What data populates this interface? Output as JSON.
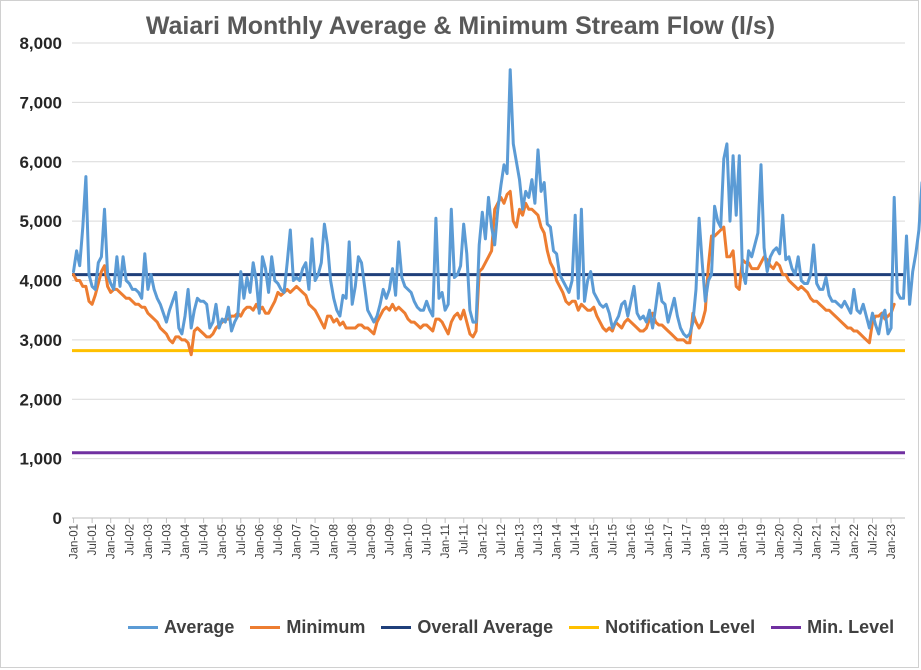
{
  "chart_data": {
    "type": "line",
    "title": "Waiari Monthly Average & Minimum Stream Flow (l/s)",
    "xlabel": "",
    "ylabel": "",
    "ylim": [
      0,
      8000
    ],
    "yticks": [
      "0",
      "1,000",
      "2,000",
      "3,000",
      "4,000",
      "5,000",
      "6,000",
      "7,000",
      "8,000"
    ],
    "grid": "horizontal",
    "legend_position": "bottom",
    "x_start": "2001-01",
    "x_end": "2023-05",
    "xtick_labels": [
      "Jan-01",
      "Jul-01",
      "Jan-02",
      "Jul-02",
      "Jan-03",
      "Jul-03",
      "Jan-04",
      "Jul-04",
      "Jan-05",
      "Jul-05",
      "Jan-06",
      "Jul-06",
      "Jan-07",
      "Jul-07",
      "Jan-08",
      "Jul-08",
      "Jan-09",
      "Jul-09",
      "Jan-10",
      "Jul-10",
      "Jan-11",
      "Jul-11",
      "Jan-12",
      "Jul-12",
      "Jan-13",
      "Jul-13",
      "Jan-14",
      "Jul-14",
      "Jan-15",
      "Jul-15",
      "Jan-16",
      "Jul-16",
      "Jan-17",
      "Jul-17",
      "Jan-18",
      "Jul-18",
      "Jan-19",
      "Jul-19",
      "Jan-20",
      "Jul-20",
      "Jan-21",
      "Jul-21",
      "Jan-22",
      "Jul-22",
      "Jan-23"
    ],
    "series": [
      {
        "name": "Average",
        "color": "#5B9BD5",
        "values": [
          4150,
          4500,
          4250,
          4900,
          5750,
          4100,
          3900,
          3850,
          4300,
          4400,
          5200,
          4100,
          3950,
          3850,
          4400,
          3900,
          4400,
          4000,
          3950,
          3850,
          3850,
          3800,
          3700,
          4450,
          3850,
          4100,
          3850,
          3700,
          3600,
          3450,
          3300,
          3500,
          3650,
          3800,
          3200,
          3100,
          3400,
          3850,
          3200,
          3500,
          3700,
          3650,
          3650,
          3600,
          3200,
          3300,
          3600,
          3200,
          3350,
          3300,
          3550,
          3150,
          3300,
          3400,
          4150,
          3700,
          4050,
          3800,
          4300,
          4000,
          3450,
          4400,
          4200,
          3800,
          4400,
          4000,
          3950,
          3850,
          3800,
          4300,
          4850,
          4000,
          4050,
          4000,
          4200,
          4300,
          3850,
          4700,
          4000,
          4100,
          4300,
          4950,
          4600,
          4000,
          3700,
          3500,
          3400,
          3750,
          3700,
          4650,
          3600,
          3900,
          4400,
          4300,
          3900,
          3500,
          3400,
          3300,
          3400,
          3600,
          3850,
          3700,
          3850,
          4200,
          3750,
          4650,
          4050,
          3900,
          3850,
          3800,
          3650,
          3550,
          3500,
          3500,
          3650,
          3500,
          3400,
          5050,
          3700,
          3800,
          3500,
          3600,
          5200,
          4050,
          4100,
          4250,
          4950,
          4450,
          3500,
          3300,
          3300,
          4600,
          5150,
          4700,
          5400,
          4900,
          4600,
          5200,
          5600,
          5950,
          5800,
          7550,
          6300,
          6000,
          5700,
          5200,
          5500,
          5400,
          5700,
          5300,
          6200,
          5500,
          5650,
          4950,
          4900,
          4500,
          4450,
          4100,
          4000,
          3900,
          3800,
          4000,
          5100,
          3700,
          5200,
          3650,
          4000,
          4150,
          3800,
          3700,
          3600,
          3550,
          3600,
          3450,
          3200,
          3300,
          3400,
          3600,
          3650,
          3400,
          3650,
          3900,
          3450,
          3350,
          3400,
          3300,
          3500,
          3200,
          3550,
          3950,
          3650,
          3600,
          3300,
          3500,
          3700,
          3400,
          3200,
          3100,
          3050,
          3100,
          3300,
          3850,
          5050,
          4300,
          3650,
          4000,
          4100,
          5250,
          5000,
          4900,
          6050,
          6300,
          5000,
          6100,
          5100,
          6100,
          4150,
          3950,
          4500,
          4400,
          4600,
          4800,
          5950,
          4550,
          4150,
          4400,
          4500,
          4550,
          4450,
          5100,
          4350,
          4400,
          4200,
          4100,
          4400,
          4000,
          3950,
          3950,
          4100,
          4600,
          3950,
          3850,
          3850,
          4050,
          3750,
          3650,
          3650,
          3600,
          3550,
          3650,
          3550,
          3450,
          3850,
          3500,
          3450,
          3600,
          3400,
          3200,
          3450,
          3250,
          3100,
          3400,
          3500,
          3100,
          3200,
          5400,
          3800,
          3700,
          3700,
          4750,
          3600,
          4150,
          4450,
          4850,
          5650
        ]
      },
      {
        "name": "Minimum",
        "color": "#ED7D31",
        "values": [
          4100,
          4000,
          4000,
          3900,
          3900,
          3650,
          3600,
          3750,
          3950,
          4150,
          4250,
          3900,
          3800,
          3850,
          3850,
          3800,
          3750,
          3700,
          3700,
          3650,
          3600,
          3600,
          3550,
          3550,
          3450,
          3400,
          3350,
          3300,
          3200,
          3150,
          3100,
          3000,
          2950,
          3050,
          3050,
          3000,
          3000,
          2950,
          2750,
          3150,
          3200,
          3150,
          3100,
          3050,
          3050,
          3100,
          3200,
          3250,
          3300,
          3350,
          3350,
          3400,
          3400,
          3450,
          3400,
          3500,
          3550,
          3550,
          3500,
          3600,
          3500,
          3550,
          3450,
          3450,
          3550,
          3650,
          3800,
          3750,
          3800,
          3850,
          3800,
          3850,
          3900,
          3850,
          3800,
          3750,
          3600,
          3550,
          3500,
          3400,
          3300,
          3200,
          3400,
          3400,
          3300,
          3350,
          3250,
          3300,
          3200,
          3200,
          3200,
          3200,
          3250,
          3250,
          3200,
          3200,
          3150,
          3100,
          3300,
          3400,
          3500,
          3550,
          3500,
          3600,
          3500,
          3550,
          3500,
          3450,
          3350,
          3300,
          3300,
          3250,
          3200,
          3250,
          3250,
          3200,
          3150,
          3350,
          3350,
          3300,
          3200,
          3100,
          3300,
          3400,
          3450,
          3350,
          3500,
          3300,
          3100,
          3050,
          3150,
          4150,
          4200,
          4300,
          4400,
          4500,
          5200,
          5300,
          5400,
          5300,
          5450,
          5500,
          5000,
          4900,
          5200,
          5100,
          5300,
          5200,
          5200,
          5150,
          5100,
          4900,
          4800,
          4500,
          4300,
          4200,
          4000,
          3900,
          3800,
          3650,
          3600,
          3650,
          3650,
          3500,
          3600,
          3550,
          3500,
          3500,
          3550,
          3400,
          3300,
          3200,
          3150,
          3200,
          3150,
          3300,
          3250,
          3200,
          3300,
          3350,
          3300,
          3250,
          3200,
          3150,
          3150,
          3200,
          3350,
          3450,
          3300,
          3250,
          3250,
          3200,
          3150,
          3100,
          3050,
          3000,
          3000,
          3000,
          2950,
          2950,
          3450,
          3300,
          3200,
          3300,
          3500,
          4250,
          4750,
          4750,
          4800,
          4850,
          4900,
          4400,
          4400,
          4500,
          3900,
          3850,
          4350,
          4300,
          4300,
          4200,
          4200,
          4200,
          4300,
          4400,
          4350,
          4250,
          4200,
          4300,
          4250,
          4100,
          4100,
          4000,
          3950,
          3900,
          3850,
          3900,
          3850,
          3800,
          3700,
          3650,
          3650,
          3600,
          3550,
          3500,
          3500,
          3450,
          3400,
          3350,
          3300,
          3250,
          3200,
          3200,
          3150,
          3150,
          3100,
          3050,
          3000,
          2950,
          3300,
          3400,
          3400,
          3450,
          3350,
          3400,
          3450,
          3600
        ]
      },
      {
        "name": "Overall Average",
        "color": "#1F3F7A",
        "values": [
          4100
        ],
        "constant": true
      },
      {
        "name": "Notification Level",
        "color": "#FFC000",
        "values": [
          2820
        ],
        "constant": true
      },
      {
        "name": "Min. Level",
        "color": "#7030A0",
        "values": [
          1100
        ],
        "constant": true
      }
    ]
  }
}
